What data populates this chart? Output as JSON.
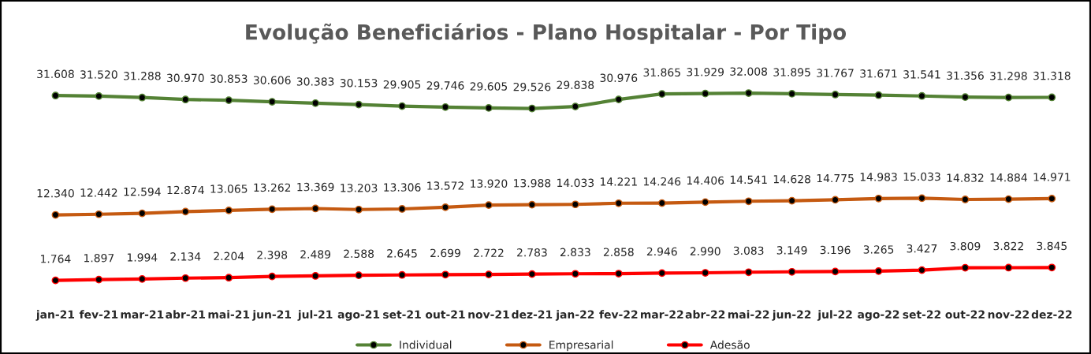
{
  "chart_data": {
    "type": "line",
    "title": "Evolução Beneficiários - Plano Hospitalar - Por Tipo",
    "categories": [
      "jan-21",
      "fev-21",
      "mar-21",
      "abr-21",
      "mai-21",
      "jun-21",
      "jul-21",
      "ago-21",
      "set-21",
      "out-21",
      "nov-21",
      "dez-21",
      "jan-22",
      "fev-22",
      "mar-22",
      "abr-22",
      "mai-22",
      "jun-22",
      "jul-22",
      "ago-22",
      "set-22",
      "out-22",
      "nov-22",
      "dez-22"
    ],
    "series": [
      {
        "name": "Individual",
        "color": "#548235",
        "values": [
          31608,
          31520,
          31288,
          30970,
          30853,
          30606,
          30383,
          30153,
          29905,
          29746,
          29605,
          29526,
          29838,
          30976,
          31865,
          31929,
          32008,
          31895,
          31767,
          31671,
          31541,
          31356,
          31298,
          31318
        ],
        "value_labels": [
          "31.608",
          "31.520",
          "31.288",
          "30.970",
          "30.853",
          "30.606",
          "30.383",
          "30.153",
          "29.905",
          "29.746",
          "29.605",
          "29.526",
          "29.838",
          "30.976",
          "31.865",
          "31.929",
          "32.008",
          "31.895",
          "31.767",
          "31.671",
          "31.541",
          "31.356",
          "31.298",
          "31.318"
        ]
      },
      {
        "name": "Empresarial",
        "color": "#c55a11",
        "values": [
          12340,
          12442,
          12594,
          12874,
          13065,
          13262,
          13369,
          13203,
          13306,
          13572,
          13920,
          13988,
          14033,
          14221,
          14246,
          14406,
          14541,
          14628,
          14775,
          14983,
          15033,
          14832,
          14884,
          14971
        ],
        "value_labels": [
          "12.340",
          "12.442",
          "12.594",
          "12.874",
          "13.065",
          "13.262",
          "13.369",
          "13.203",
          "13.306",
          "13.572",
          "13.920",
          "13.988",
          "14.033",
          "14.221",
          "14.246",
          "14.406",
          "14.541",
          "14.628",
          "14.775",
          "14.983",
          "15.033",
          "14.832",
          "14.884",
          "14.971"
        ]
      },
      {
        "name": "Adesão",
        "color": "#ff0000",
        "values": [
          1764,
          1897,
          1994,
          2134,
          2204,
          2398,
          2489,
          2588,
          2645,
          2699,
          2722,
          2783,
          2833,
          2858,
          2946,
          2990,
          3083,
          3149,
          3196,
          3265,
          3427,
          3809,
          3822,
          3845
        ],
        "value_labels": [
          "1.764",
          "1.897",
          "1.994",
          "2.134",
          "2.204",
          "2.398",
          "2.489",
          "2.588",
          "2.645",
          "2.699",
          "2.722",
          "2.783",
          "2.833",
          "2.858",
          "2.946",
          "2.990",
          "3.083",
          "3.149",
          "3.196",
          "3.265",
          "3.427",
          "3.809",
          "3.822",
          "3.845"
        ]
      }
    ],
    "tick_labels": "x",
    "grid": false,
    "legend": "bottom",
    "marker": "circle",
    "line_style": "solid"
  }
}
